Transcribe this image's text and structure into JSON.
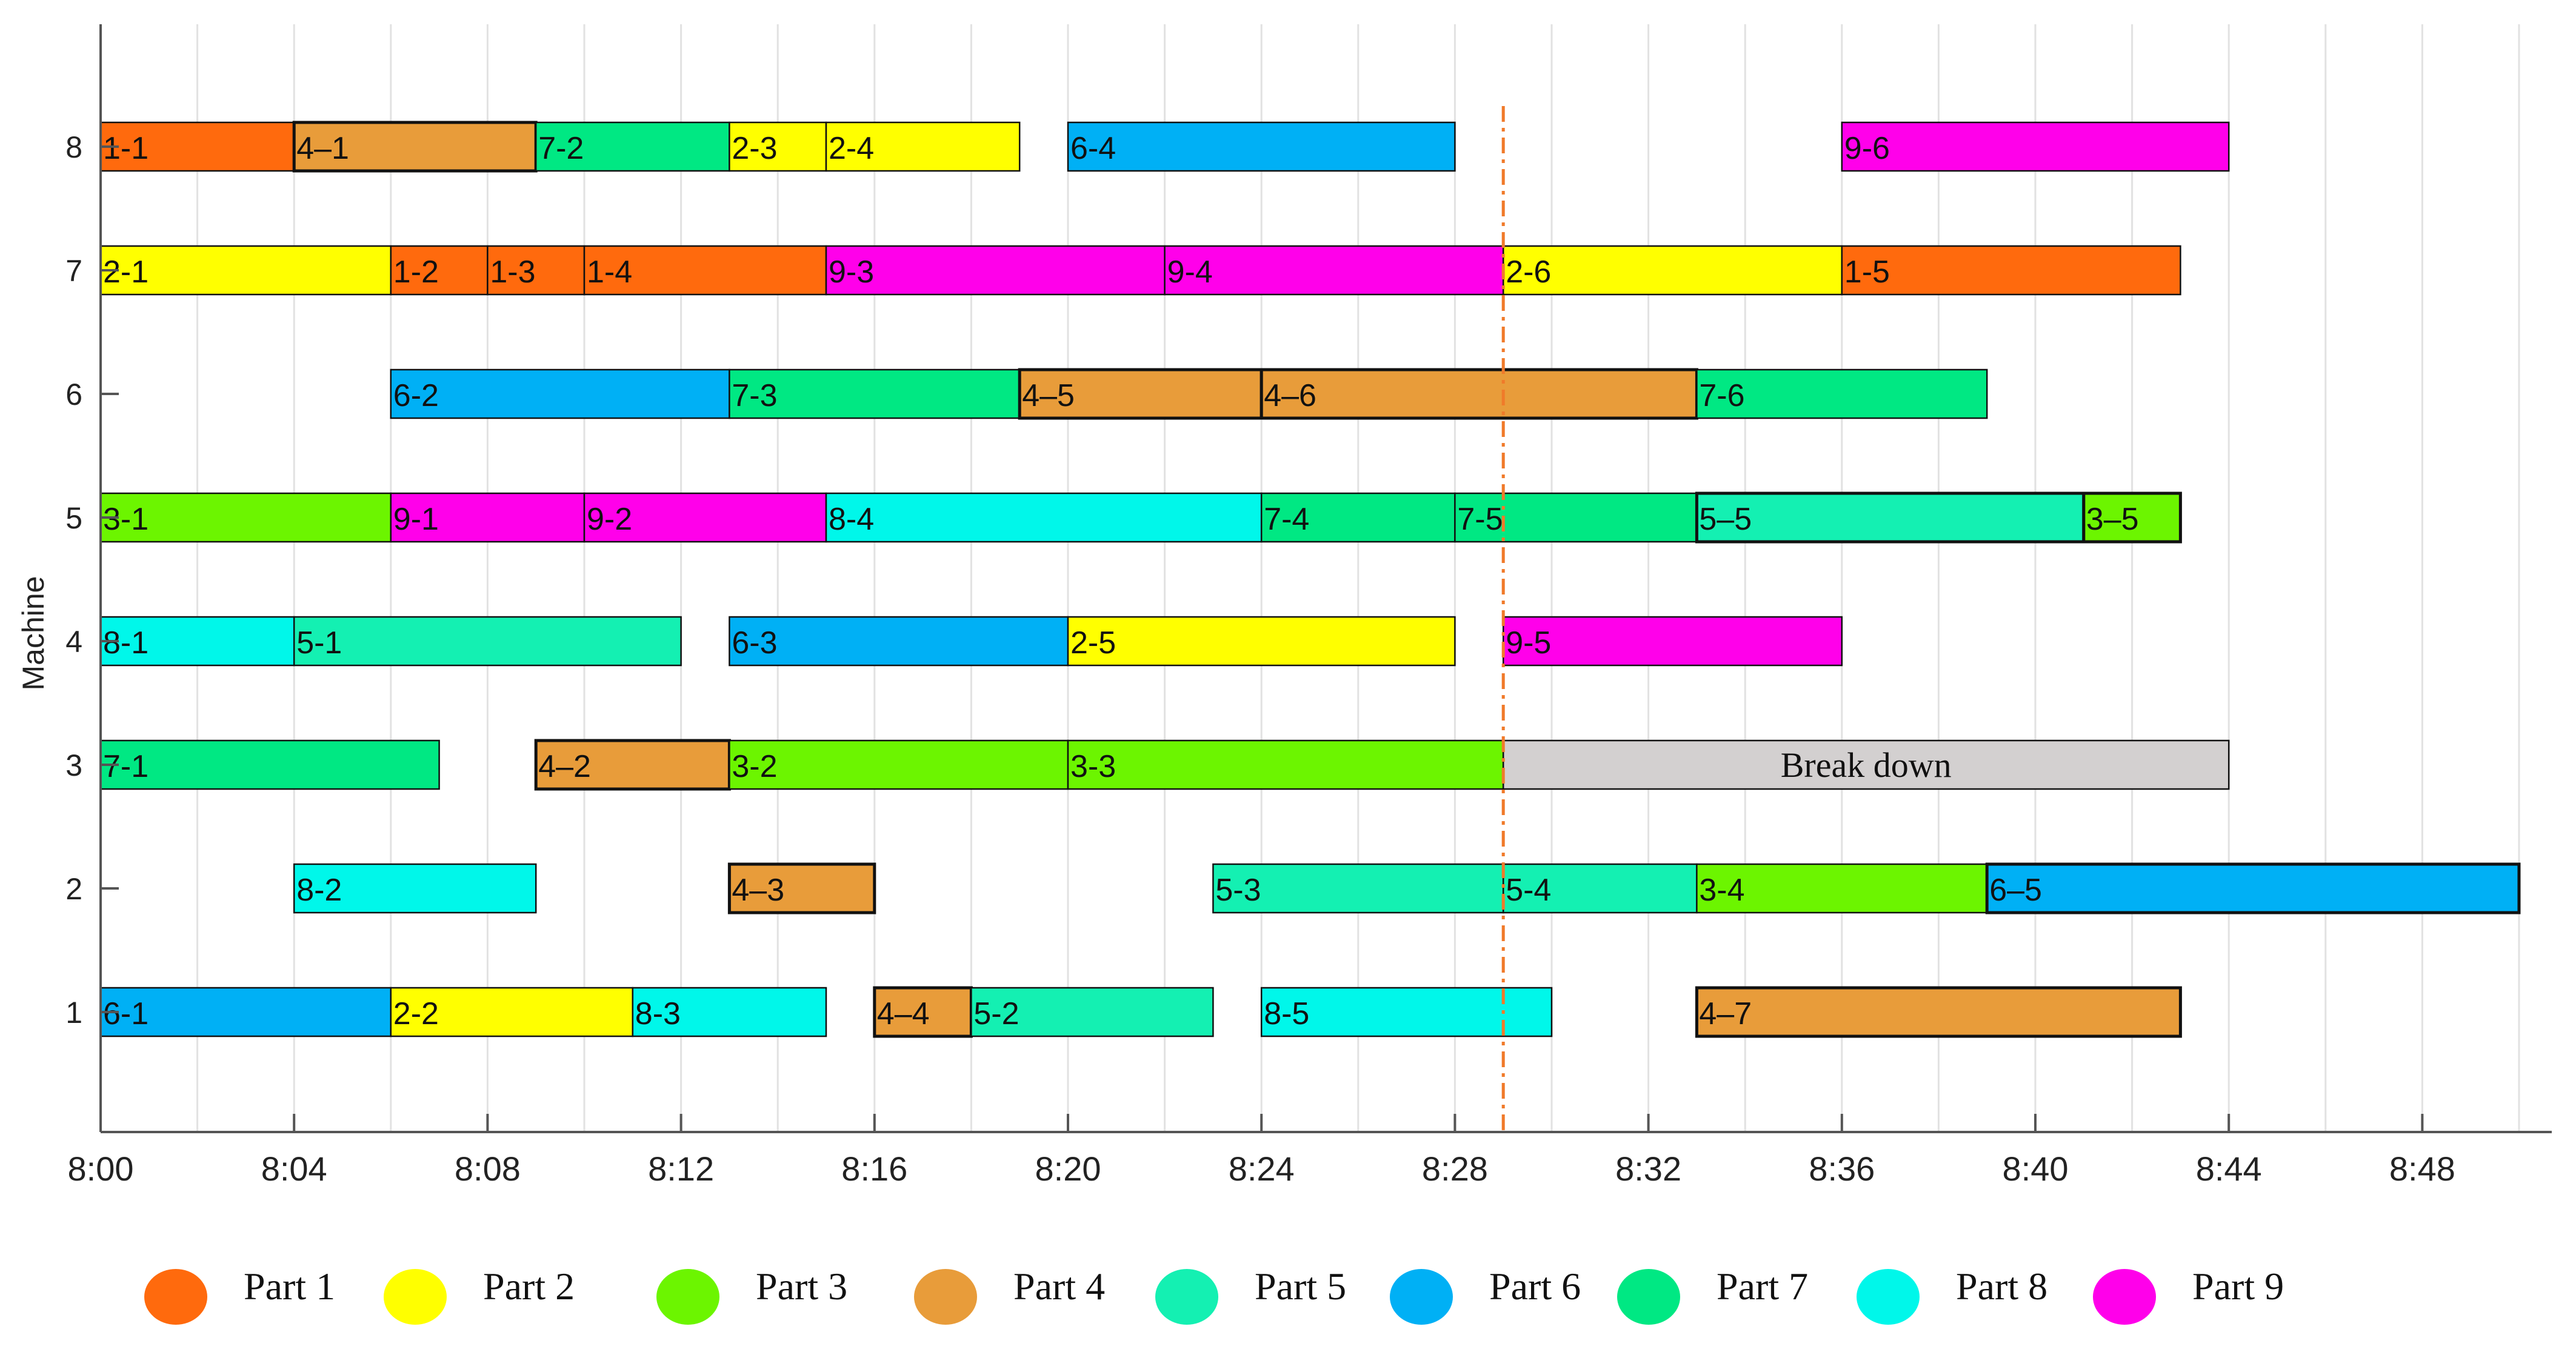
{
  "chart_data": {
    "type": "gantt",
    "title": "",
    "xlabel": "",
    "ylabel": "Machine",
    "x_unit": "minutes after 8:00",
    "xlim": [
      0,
      50
    ],
    "x_ticks": [
      0,
      4,
      8,
      12,
      16,
      20,
      24,
      28,
      32,
      36,
      40,
      44,
      48
    ],
    "x_tick_labels": [
      "8:00",
      "8:04",
      "8:08",
      "8:12",
      "8:16",
      "8:20",
      "8:24",
      "8:28",
      "8:32",
      "8:36",
      "8:40",
      "8:44",
      "8:48"
    ],
    "y_ticks": [
      1,
      2,
      3,
      4,
      5,
      6,
      7,
      8
    ],
    "y_tick_labels": [
      "1",
      "2",
      "3",
      "4",
      "5",
      "6",
      "7",
      "8"
    ],
    "grid": "vertical, every 2 minutes",
    "breakdown_marker": {
      "time": 29,
      "style": "dash-dot",
      "color": "#F07A2A"
    },
    "parts": [
      {
        "part": 1,
        "name": "Part 1",
        "color": "#FF6A0D"
      },
      {
        "part": 2,
        "name": "Part 2",
        "color": "#FFFF00"
      },
      {
        "part": 3,
        "name": "Part 3",
        "color": "#6CF500"
      },
      {
        "part": 4,
        "name": "Part 4",
        "color": "#E89C3A"
      },
      {
        "part": 5,
        "name": "Part 5",
        "color": "#14F0B2"
      },
      {
        "part": 6,
        "name": "Part 6",
        "color": "#00B0F5"
      },
      {
        "part": 7,
        "name": "Part 7",
        "color": "#00E883"
      },
      {
        "part": 8,
        "name": "Part 8",
        "color": "#00F7EA"
      },
      {
        "part": 9,
        "name": "Part 9",
        "color": "#FF00EA"
      }
    ],
    "tasks": [
      {
        "machine": 8,
        "label": "1-1",
        "part": 1,
        "start": 0,
        "end": 4
      },
      {
        "machine": 8,
        "label": "4–1",
        "part": 4,
        "start": 4,
        "end": 9,
        "bold": true
      },
      {
        "machine": 8,
        "label": "7-2",
        "part": 7,
        "start": 9,
        "end": 13
      },
      {
        "machine": 8,
        "label": "2-3",
        "part": 2,
        "start": 13,
        "end": 15
      },
      {
        "machine": 8,
        "label": "2-4",
        "part": 2,
        "start": 15,
        "end": 19
      },
      {
        "machine": 8,
        "label": "6-4",
        "part": 6,
        "start": 20,
        "end": 28
      },
      {
        "machine": 8,
        "label": "9-6",
        "part": 9,
        "start": 36,
        "end": 44
      },
      {
        "machine": 7,
        "label": "2-1",
        "part": 2,
        "start": 0,
        "end": 6
      },
      {
        "machine": 7,
        "label": "1-2",
        "part": 1,
        "start": 6,
        "end": 8
      },
      {
        "machine": 7,
        "label": "1-3",
        "part": 1,
        "start": 8,
        "end": 10
      },
      {
        "machine": 7,
        "label": "1-4",
        "part": 1,
        "start": 10,
        "end": 15
      },
      {
        "machine": 7,
        "label": "9-3",
        "part": 9,
        "start": 15,
        "end": 22
      },
      {
        "machine": 7,
        "label": "9-4",
        "part": 9,
        "start": 22,
        "end": 29
      },
      {
        "machine": 7,
        "label": "2-6",
        "part": 2,
        "start": 29,
        "end": 36
      },
      {
        "machine": 7,
        "label": "1-5",
        "part": 1,
        "start": 36,
        "end": 43
      },
      {
        "machine": 6,
        "label": "6-2",
        "part": 6,
        "start": 6,
        "end": 13
      },
      {
        "machine": 6,
        "label": "7-3",
        "part": 7,
        "start": 13,
        "end": 19
      },
      {
        "machine": 6,
        "label": "4–5",
        "part": 4,
        "start": 19,
        "end": 24,
        "bold": true
      },
      {
        "machine": 6,
        "label": "4–6",
        "part": 4,
        "start": 24,
        "end": 33,
        "bold": true
      },
      {
        "machine": 6,
        "label": "7-6",
        "part": 7,
        "start": 33,
        "end": 39
      },
      {
        "machine": 5,
        "label": "3-1",
        "part": 3,
        "start": 0,
        "end": 6
      },
      {
        "machine": 5,
        "label": "9-1",
        "part": 9,
        "start": 6,
        "end": 10
      },
      {
        "machine": 5,
        "label": "9-2",
        "part": 9,
        "start": 10,
        "end": 15
      },
      {
        "machine": 5,
        "label": "8-4",
        "part": 8,
        "start": 15,
        "end": 24
      },
      {
        "machine": 5,
        "label": "7-4",
        "part": 7,
        "start": 24,
        "end": 28
      },
      {
        "machine": 5,
        "label": "7-5",
        "part": 7,
        "start": 28,
        "end": 33
      },
      {
        "machine": 5,
        "label": "5–5",
        "part": 5,
        "start": 33,
        "end": 41,
        "bold": true
      },
      {
        "machine": 5,
        "label": "3–5",
        "part": 3,
        "start": 41,
        "end": 43,
        "bold": true
      },
      {
        "machine": 4,
        "label": "8-1",
        "part": 8,
        "start": 0,
        "end": 4
      },
      {
        "machine": 4,
        "label": "5-1",
        "part": 5,
        "start": 4,
        "end": 12
      },
      {
        "machine": 4,
        "label": "6-3",
        "part": 6,
        "start": 13,
        "end": 20
      },
      {
        "machine": 4,
        "label": "2-5",
        "part": 2,
        "start": 20,
        "end": 28
      },
      {
        "machine": 4,
        "label": "9-5",
        "part": 9,
        "start": 29,
        "end": 36
      },
      {
        "machine": 3,
        "label": "7-1",
        "part": 7,
        "start": 0,
        "end": 7
      },
      {
        "machine": 3,
        "label": "4–2",
        "part": 4,
        "start": 9,
        "end": 13,
        "bold": true
      },
      {
        "machine": 3,
        "label": "3-2",
        "part": 3,
        "start": 13,
        "end": 20
      },
      {
        "machine": 3,
        "label": "3-3",
        "part": 3,
        "start": 20,
        "end": 29
      },
      {
        "machine": 3,
        "label": "Break down",
        "part": 0,
        "start": 29,
        "end": 44,
        "breakdown": true
      },
      {
        "machine": 2,
        "label": "8-2",
        "part": 8,
        "start": 4,
        "end": 9
      },
      {
        "machine": 2,
        "label": "4–3",
        "part": 4,
        "start": 13,
        "end": 16,
        "bold": true
      },
      {
        "machine": 2,
        "label": "5-3",
        "part": 5,
        "start": 23,
        "end": 29
      },
      {
        "machine": 2,
        "label": "5-4",
        "part": 5,
        "start": 29,
        "end": 33
      },
      {
        "machine": 2,
        "label": "3-4",
        "part": 3,
        "start": 33,
        "end": 39
      },
      {
        "machine": 2,
        "label": "6–5",
        "part": 6,
        "start": 39,
        "end": 50,
        "bold": true
      },
      {
        "machine": 1,
        "label": "6-1",
        "part": 6,
        "start": 0,
        "end": 6
      },
      {
        "machine": 1,
        "label": "2-2",
        "part": 2,
        "start": 6,
        "end": 11
      },
      {
        "machine": 1,
        "label": "8-3",
        "part": 8,
        "start": 11,
        "end": 15
      },
      {
        "machine": 1,
        "label": "4–4",
        "part": 4,
        "start": 16,
        "end": 18,
        "bold": true
      },
      {
        "machine": 1,
        "label": "5-2",
        "part": 5,
        "start": 18,
        "end": 23
      },
      {
        "machine": 1,
        "label": "8-5",
        "part": 8,
        "start": 24,
        "end": 30
      },
      {
        "machine": 1,
        "label": "4–7",
        "part": 4,
        "start": 33,
        "end": 43,
        "bold": true
      }
    ],
    "breakdown_color": "#D3D0D0"
  }
}
